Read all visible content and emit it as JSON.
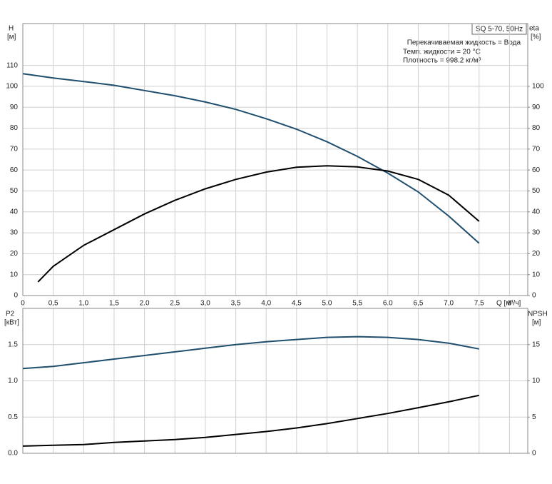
{
  "chart_data": [
    {
      "type": "line",
      "title": "SQ 5-70, 50Hz",
      "annotations": [
        "Перекачиваемая жидкость = Вода",
        "Темп. жидкости = 20 °C",
        "Плотность = 998.2 кг/м³"
      ],
      "y_label": "H",
      "y_unit": "[м]",
      "y2_label": "eta",
      "y2_unit": "[%]",
      "x_label": "Q [м³/ч]",
      "xlim": [
        0,
        8.3
      ],
      "xticks": [
        0,
        {
          "value": 0.5,
          "label": "0,5"
        },
        {
          "value": 1,
          "label": "1,0"
        },
        {
          "value": 1.5,
          "label": "1,5"
        },
        {
          "value": 2,
          "label": "2.0"
        },
        {
          "value": 2.5,
          "label": "2,5"
        },
        {
          "value": 3,
          "label": "3,0"
        },
        {
          "value": 3.5,
          "label": "3,5"
        },
        {
          "value": 4,
          "label": "4,0"
        },
        {
          "value": 4.5,
          "label": "4,5"
        },
        {
          "value": 5,
          "label": "5.0"
        },
        {
          "value": 5.5,
          "label": "5,5"
        },
        {
          "value": 6,
          "label": "6.0"
        },
        {
          "value": 6.5,
          "label": "6,5"
        },
        {
          "value": 7,
          "label": "7,0"
        },
        {
          "value": 7.5,
          "label": "7,5"
        },
        8
      ],
      "ylim": [
        0,
        130
      ],
      "yticks": [
        0,
        10,
        20,
        30,
        40,
        50,
        60,
        70,
        80,
        90,
        100,
        110
      ],
      "y2lim": [
        0,
        130
      ],
      "y2ticks": [
        0,
        10,
        20,
        30,
        40,
        50,
        60,
        70,
        80,
        90,
        100
      ],
      "grid": true,
      "series": [
        {
          "name": "H",
          "color": "#1f4e6e",
          "x": [
            0,
            0.5,
            1,
            1.5,
            2,
            2.5,
            3,
            3.5,
            4,
            4.5,
            5,
            5.5,
            6,
            6.5,
            7,
            7.5
          ],
          "values": [
            106,
            104,
            102.3,
            100.5,
            98,
            95.5,
            92.5,
            89,
            84.5,
            79.5,
            73.5,
            66.5,
            58.5,
            49.5,
            38,
            25
          ]
        },
        {
          "name": "eta",
          "color": "#000000",
          "axis": "y2",
          "x": [
            0.25,
            0.5,
            1,
            1.5,
            2,
            2.5,
            3,
            3.5,
            4,
            4.5,
            5,
            5.5,
            6,
            6.5,
            7,
            7.5
          ],
          "values": [
            6.5,
            14,
            24,
            31.5,
            39,
            45.5,
            51,
            55.5,
            59,
            61.3,
            62,
            61.5,
            59.5,
            55.5,
            48,
            35.5
          ]
        }
      ]
    },
    {
      "type": "line",
      "y_label": "P2",
      "y_unit": "[кВт]",
      "y2_label": "NPSH",
      "y2_unit": "[м]",
      "xlim": [
        0,
        8.3
      ],
      "ylim": [
        0,
        2
      ],
      "yticks": [
        {
          "value": 0,
          "label": "0.0"
        },
        0.5,
        {
          "value": 1,
          "label": "1.0"
        },
        1.5
      ],
      "y2lim": [
        0,
        20
      ],
      "y2ticks": [
        0,
        5,
        10,
        15
      ],
      "grid": true,
      "series": [
        {
          "name": "P2",
          "color": "#1f4e6e",
          "x": [
            0,
            0.5,
            1,
            1.5,
            2,
            2.5,
            3,
            3.5,
            4,
            4.5,
            5,
            5.5,
            6,
            6.5,
            7,
            7.5
          ],
          "values": [
            1.17,
            1.2,
            1.25,
            1.3,
            1.35,
            1.4,
            1.45,
            1.5,
            1.54,
            1.57,
            1.6,
            1.61,
            1.6,
            1.57,
            1.52,
            1.44
          ]
        },
        {
          "name": "NPSH",
          "color": "#000000",
          "axis": "y2",
          "x": [
            0,
            0.5,
            1,
            1.5,
            2,
            2.5,
            3,
            3.5,
            4,
            4.5,
            5,
            5.5,
            6,
            6.5,
            7,
            7.5
          ],
          "values": [
            1,
            1.1,
            1.2,
            1.5,
            1.7,
            1.9,
            2.2,
            2.6,
            3,
            3.5,
            4.1,
            4.8,
            5.5,
            6.3,
            7.1,
            8
          ]
        }
      ]
    }
  ]
}
